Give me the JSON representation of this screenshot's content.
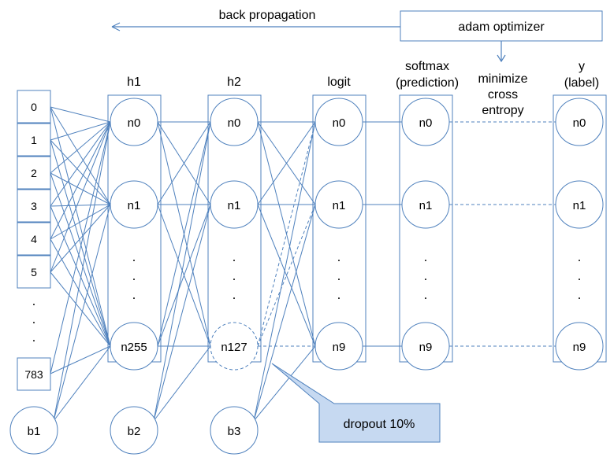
{
  "top": {
    "back_propagation": "back propagation",
    "optimizer": "adam optimizer"
  },
  "columns": {
    "h1": "h1",
    "h2": "h2",
    "logit": "logit",
    "softmax_line1": "softmax",
    "softmax_line2": "(prediction)",
    "loss_line1": "minimize",
    "loss_line2": "cross",
    "loss_line3": "entropy",
    "y_line1": "y",
    "y_line2": "(label)"
  },
  "input": {
    "cells": [
      "0",
      "1",
      "2",
      "3",
      "4",
      "5"
    ],
    "last": "783"
  },
  "h1": {
    "nodes": [
      "n0",
      "n1",
      "n255"
    ]
  },
  "h2": {
    "nodes": [
      "n0",
      "n1",
      "n127"
    ]
  },
  "logit": {
    "nodes": [
      "n0",
      "n1",
      "n9"
    ]
  },
  "softmax": {
    "nodes": [
      "n0",
      "n1",
      "n9"
    ]
  },
  "y": {
    "nodes": [
      "n0",
      "n1",
      "n9"
    ]
  },
  "bias": {
    "b1": "b1",
    "b2": "b2",
    "b3": "b3"
  },
  "dots": ".",
  "callout": {
    "dropout": "dropout 10%"
  },
  "colors": {
    "line": "#4f81bd",
    "callout_fill": "#c6d9f1"
  }
}
